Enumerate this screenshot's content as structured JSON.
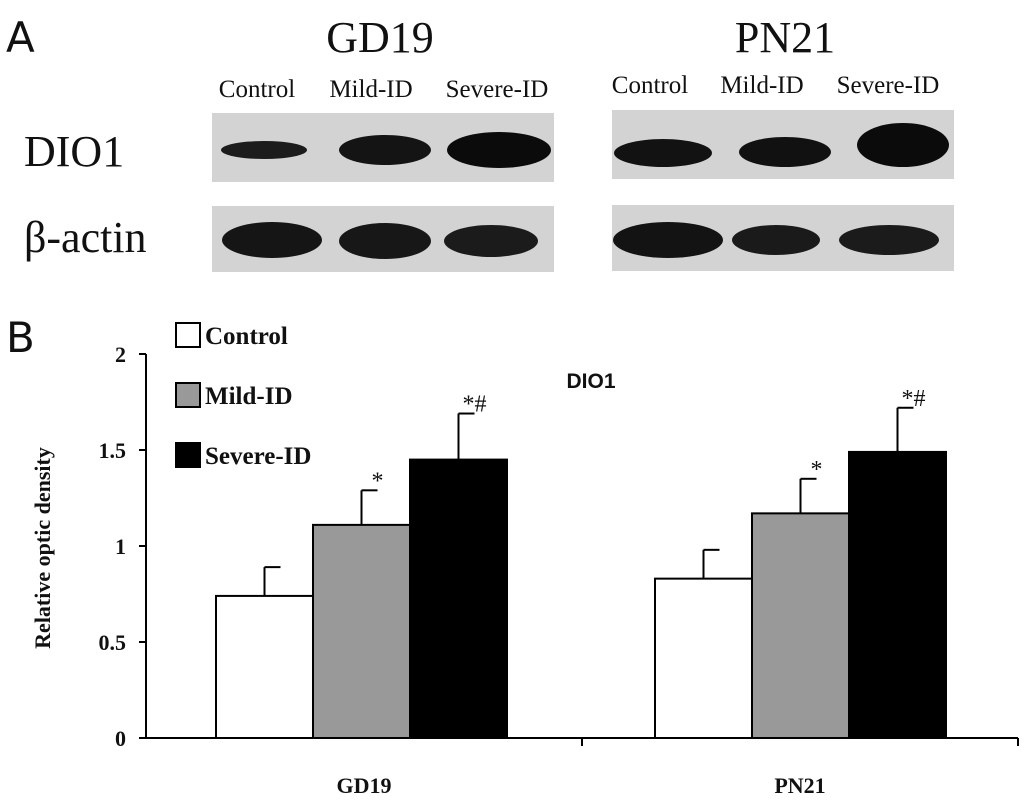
{
  "figure": {
    "panel_a_label": "A",
    "panel_b_label": "B"
  },
  "blots": [
    {
      "title": "GD19",
      "lanes": [
        "Control",
        "Mild-ID",
        "Severe-ID"
      ]
    },
    {
      "title": "PN21",
      "lanes": [
        "Control",
        "Mild-ID",
        "Severe-ID"
      ]
    }
  ],
  "blot_rows": [
    "DIO1",
    "β-actin"
  ],
  "chart_data": {
    "type": "bar",
    "title": "DIO1",
    "ylabel": "Relative optic density",
    "xlabel": "",
    "categories": [
      "GD19",
      "PN21"
    ],
    "ylim": [
      0,
      2
    ],
    "yticks": [
      "0",
      "0.5",
      "1",
      "1.5",
      "2"
    ],
    "grid": false,
    "legend_position": "top-left",
    "series": [
      {
        "name": "Control",
        "color": "#ffffff",
        "values": [
          0.74,
          0.83
        ],
        "errors": [
          0.15,
          0.15
        ],
        "marks": [
          "",
          ""
        ]
      },
      {
        "name": "Mild-ID",
        "color": "#999999",
        "values": [
          1.11,
          1.17
        ],
        "errors": [
          0.18,
          0.18
        ],
        "marks": [
          "*",
          "*"
        ]
      },
      {
        "name": "Severe-ID",
        "color": "#000000",
        "values": [
          1.45,
          1.49
        ],
        "errors": [
          0.24,
          0.23
        ],
        "marks": [
          "*#",
          "*#"
        ]
      }
    ]
  }
}
